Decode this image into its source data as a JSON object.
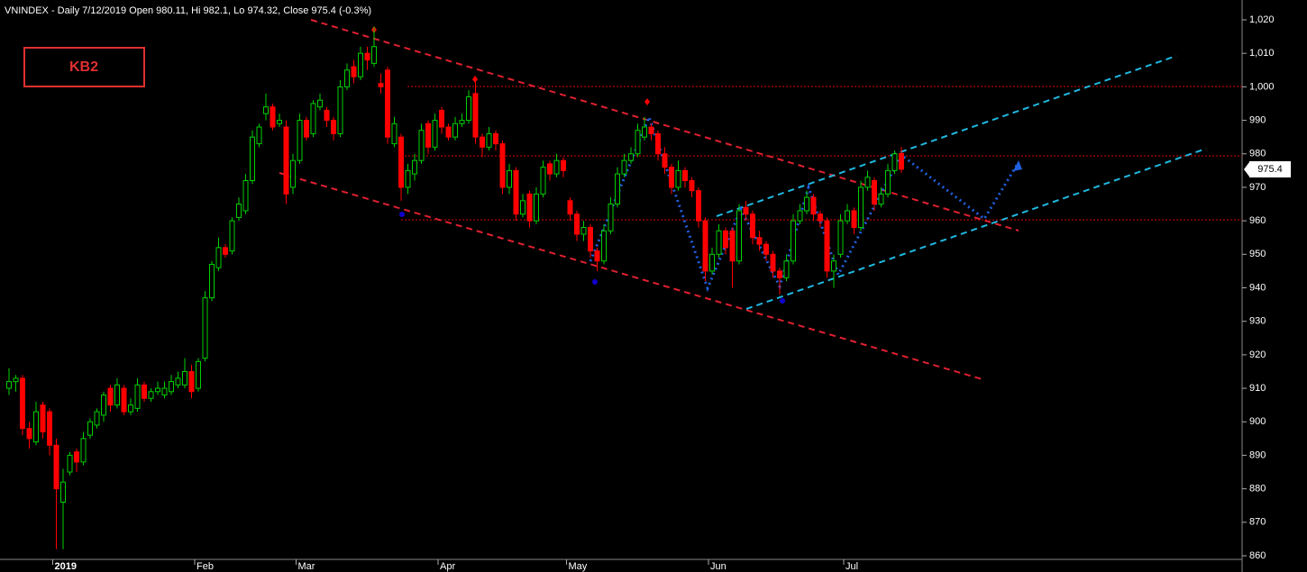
{
  "chart_data": {
    "type": "candlestick",
    "title": "VNINDEX - Daily 7/12/2019 Open 980.11, Hi 982.1, Lo 974.32, Close 975.4 (-0.3%)",
    "badge": "KB2",
    "last_price": 975.4,
    "up_color": "#00d000",
    "down_color": "#ff0000",
    "ylim": [
      860,
      1020
    ],
    "yticks": [
      860,
      870,
      880,
      890,
      900,
      910,
      920,
      930,
      940,
      950,
      960,
      970,
      980,
      990,
      {
        "value": 1000,
        "label": "1,000"
      },
      {
        "value": 1010,
        "label": "1,010"
      },
      {
        "value": 1020,
        "label": "1,020"
      }
    ],
    "categories": [
      null,
      null,
      null,
      null,
      null,
      null,
      null,
      "2019",
      null,
      null,
      null,
      null,
      null,
      null,
      null,
      null,
      null,
      null,
      null,
      null,
      null,
      null,
      null,
      null,
      null,
      null,
      null,
      null,
      "Feb",
      null,
      null,
      null,
      null,
      null,
      null,
      null,
      null,
      null,
      null,
      null,
      null,
      null,
      null,
      "Mar",
      null,
      null,
      null,
      null,
      null,
      null,
      null,
      null,
      null,
      null,
      null,
      null,
      null,
      null,
      null,
      null,
      null,
      null,
      null,
      null,
      "Apr",
      null,
      null,
      null,
      null,
      null,
      null,
      null,
      null,
      null,
      null,
      null,
      null,
      null,
      null,
      null,
      null,
      null,
      null,
      "May",
      null,
      null,
      null,
      null,
      null,
      null,
      null,
      null,
      null,
      null,
      null,
      null,
      null,
      null,
      null,
      null,
      null,
      null,
      null,
      null,
      "Jun",
      null,
      null,
      null,
      null,
      null,
      null,
      null,
      null,
      null,
      null,
      null,
      null,
      null,
      null,
      null,
      null,
      null,
      null,
      null,
      "Jul",
      null,
      null,
      null,
      null,
      null,
      null,
      null,
      null
    ],
    "candles": [
      [
        910,
        916,
        908,
        912
      ],
      [
        912,
        914,
        909,
        913
      ],
      [
        913,
        914,
        896,
        898
      ],
      [
        898,
        900,
        892,
        895
      ],
      [
        894,
        906,
        893,
        903
      ],
      [
        905,
        906,
        895,
        897
      ],
      [
        903,
        904,
        890,
        893
      ],
      [
        893,
        895,
        862,
        880
      ],
      [
        876,
        886,
        862,
        882
      ],
      [
        885,
        891,
        884,
        890
      ],
      [
        891,
        892,
        885,
        888
      ],
      [
        888,
        897,
        887,
        895
      ],
      [
        896,
        901,
        895,
        900
      ],
      [
        899,
        904,
        898,
        903
      ],
      [
        902,
        909,
        900,
        908
      ],
      [
        910,
        911,
        903,
        905
      ],
      [
        905,
        913,
        904,
        911
      ],
      [
        910,
        911,
        902,
        903
      ],
      [
        903,
        907,
        902,
        905
      ],
      [
        904,
        913,
        903,
        911
      ],
      [
        911,
        912,
        906,
        907
      ],
      [
        907,
        910,
        906,
        909
      ],
      [
        909,
        912,
        908,
        910
      ],
      [
        908,
        912,
        907,
        910
      ],
      [
        909,
        914,
        908,
        912
      ],
      [
        911,
        915,
        910,
        913
      ],
      [
        911,
        919,
        910,
        915
      ],
      [
        915,
        917,
        907,
        909
      ],
      [
        910,
        919,
        909,
        918
      ],
      [
        919,
        939,
        918,
        937
      ],
      [
        937,
        948,
        936,
        947
      ],
      [
        946,
        955,
        945,
        952
      ],
      [
        952,
        953,
        949,
        950
      ],
      [
        951,
        961,
        950,
        960
      ],
      [
        961,
        967,
        960,
        965
      ],
      [
        963,
        974,
        962,
        972
      ],
      [
        972,
        987,
        971,
        985
      ],
      [
        983,
        989,
        982,
        988
      ],
      [
        992,
        998,
        990,
        994
      ],
      [
        994,
        995,
        987,
        988
      ],
      [
        989,
        992,
        988,
        990
      ],
      [
        988,
        990,
        965,
        968
      ],
      [
        970,
        980,
        968,
        978
      ],
      [
        978,
        992,
        977,
        990
      ],
      [
        990,
        991,
        984,
        985
      ],
      [
        986,
        996,
        985,
        995
      ],
      [
        994,
        998,
        993,
        996
      ],
      [
        993,
        994,
        988,
        990
      ],
      [
        990,
        991,
        984,
        986
      ],
      [
        986,
        1002,
        985,
        1000
      ],
      [
        1000,
        1007,
        999,
        1005
      ],
      [
        1006,
        1008,
        1001,
        1003
      ],
      [
        1003,
        1012,
        1002,
        1010
      ],
      [
        1010,
        1012,
        1005,
        1008
      ],
      [
        1007,
        1018,
        1006,
        1012
      ],
      [
        1001,
        1004,
        998,
        1000
      ],
      [
        1005,
        1006,
        983,
        985
      ],
      [
        983,
        991,
        982,
        989
      ],
      [
        985,
        986,
        966,
        970
      ],
      [
        970,
        977,
        968,
        975
      ],
      [
        974,
        980,
        972,
        978
      ],
      [
        978,
        989,
        977,
        987
      ],
      [
        989,
        990,
        980,
        982
      ],
      [
        982,
        992,
        981,
        990
      ],
      [
        993,
        994,
        986,
        988
      ],
      [
        988,
        989,
        984,
        985
      ],
      [
        985,
        991,
        984,
        989
      ],
      [
        989,
        992,
        988,
        990
      ],
      [
        990,
        999,
        989,
        997
      ],
      [
        998,
        1003,
        983,
        985
      ],
      [
        985,
        986,
        979,
        982
      ],
      [
        982,
        988,
        981,
        986
      ],
      [
        986,
        987,
        981,
        983
      ],
      [
        983,
        984,
        968,
        970
      ],
      [
        970,
        977,
        968,
        975
      ],
      [
        975,
        976,
        960,
        962
      ],
      [
        962,
        968,
        961,
        966
      ],
      [
        968,
        969,
        958,
        960
      ],
      [
        960,
        970,
        959,
        968
      ],
      [
        968,
        978,
        967,
        976
      ],
      [
        977,
        978,
        972,
        974
      ],
      [
        974,
        980,
        973,
        978
      ],
      [
        978,
        979,
        973,
        975
      ],
      [
        966,
        967,
        960,
        962
      ],
      [
        962,
        963,
        954,
        956
      ],
      [
        956,
        960,
        954,
        958
      ],
      [
        958,
        959,
        949,
        951
      ],
      [
        951,
        952,
        945,
        948
      ],
      [
        948,
        959,
        947,
        957
      ],
      [
        957,
        967,
        956,
        965
      ],
      [
        965,
        976,
        964,
        974
      ],
      [
        974,
        980,
        973,
        978
      ],
      [
        978,
        982,
        977,
        980
      ],
      [
        980,
        989,
        979,
        987
      ],
      [
        985,
        991,
        984,
        988
      ],
      [
        988,
        989,
        984,
        986
      ],
      [
        986,
        987,
        978,
        980
      ],
      [
        980,
        982,
        974,
        976
      ],
      [
        976,
        977,
        968,
        970
      ],
      [
        970,
        978,
        969,
        975
      ],
      [
        975,
        976,
        970,
        972
      ],
      [
        972,
        973,
        967,
        969
      ],
      [
        969,
        970,
        958,
        960
      ],
      [
        960,
        961,
        942,
        945
      ],
      [
        945,
        952,
        944,
        950
      ],
      [
        950,
        959,
        949,
        957
      ],
      [
        957,
        958,
        950,
        952
      ],
      [
        957,
        958,
        940,
        948
      ],
      [
        948,
        965,
        947,
        963
      ],
      [
        964,
        966,
        960,
        962
      ],
      [
        962,
        963,
        953,
        955
      ],
      [
        955,
        957,
        951,
        953
      ],
      [
        953,
        954,
        948,
        950
      ],
      [
        950,
        951,
        943,
        945
      ],
      [
        945,
        946,
        938,
        943
      ],
      [
        943,
        950,
        942,
        948
      ],
      [
        948,
        962,
        947,
        960
      ],
      [
        960,
        965,
        959,
        963
      ],
      [
        963,
        969,
        962,
        967
      ],
      [
        967,
        968,
        960,
        962
      ],
      [
        962,
        963,
        958,
        960
      ],
      [
        960,
        961,
        943,
        945
      ],
      [
        945,
        950,
        940,
        948
      ],
      [
        950,
        962,
        949,
        960
      ],
      [
        960,
        965,
        959,
        963
      ],
      [
        963,
        964,
        956,
        958
      ],
      [
        958,
        972,
        957,
        970
      ],
      [
        970,
        975,
        969,
        973
      ],
      [
        972,
        973,
        963,
        965
      ],
      [
        965,
        970,
        964,
        968
      ],
      [
        968,
        977,
        967,
        975
      ],
      [
        975,
        981,
        974,
        980
      ],
      [
        980.11,
        982.1,
        974.32,
        975.4
      ]
    ]
  }
}
